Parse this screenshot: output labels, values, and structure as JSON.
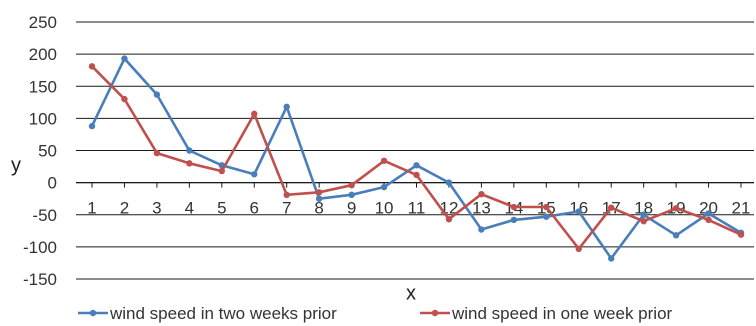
{
  "chart_data": {
    "type": "line",
    "title": "",
    "xlabel": "x",
    "ylabel": "y",
    "ylim": [
      -150,
      250
    ],
    "y_ticks": [
      250,
      200,
      150,
      100,
      50,
      0,
      -50,
      -100,
      -150
    ],
    "x": [
      1,
      2,
      3,
      4,
      5,
      6,
      7,
      8,
      9,
      10,
      11,
      12,
      13,
      14,
      15,
      16,
      17,
      18,
      19,
      20,
      21
    ],
    "x_tick_labels": [
      "1",
      "2",
      "3",
      "4",
      "5",
      "6",
      "7",
      "8",
      "9",
      "10",
      "11",
      "12",
      "13",
      "14",
      "15",
      "16",
      "17",
      "18",
      "19",
      "20",
      "21"
    ],
    "grid": true,
    "legend_position": "bottom",
    "series": [
      {
        "name": "wind speed in two weeks prior",
        "color": "#4a7ebb",
        "values": [
          88,
          193,
          137,
          50,
          27,
          13,
          118,
          -25,
          -19,
          -7,
          27,
          0,
          -73,
          -58,
          -53,
          -45,
          -118,
          -50,
          -82,
          -48,
          -78
        ]
      },
      {
        "name": "wind speed in one week prior",
        "color": "#c0504d",
        "values": [
          181,
          130,
          46,
          30,
          18,
          107,
          -19,
          -15,
          -4,
          34,
          12,
          -57,
          -18,
          -38,
          -38,
          -103,
          -39,
          -60,
          -40,
          -58,
          -81
        ]
      }
    ]
  }
}
